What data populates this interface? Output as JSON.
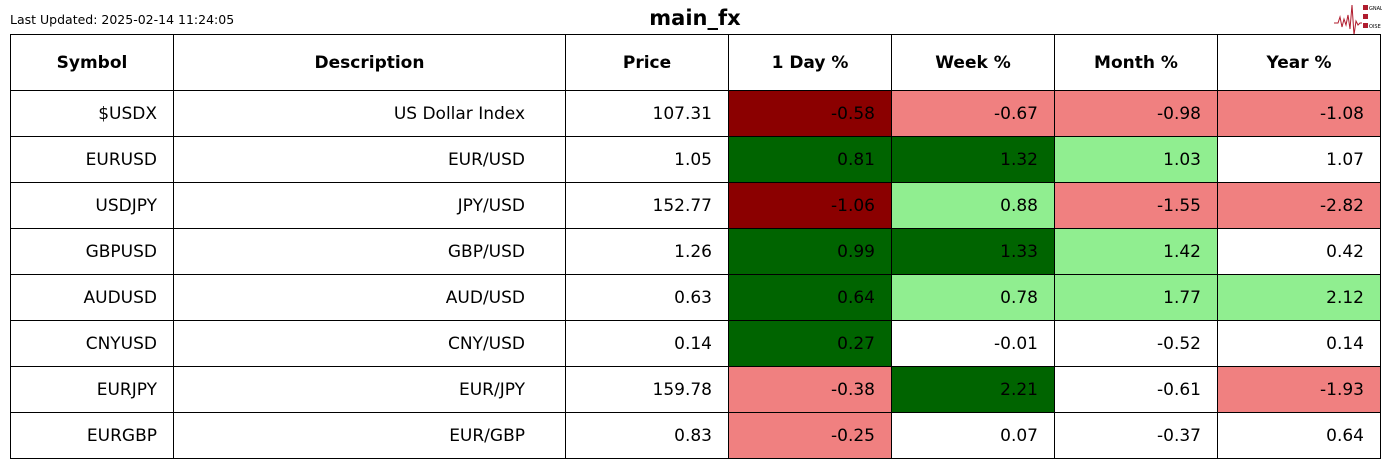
{
  "header": {
    "last_updated": "Last Updated: 2025-02-14 11:24:05",
    "title": "main_fx",
    "logo_text": "SIGNAL 2 NOISE"
  },
  "colors": {
    "strong_neg": "#8b0000",
    "neg": "#f08080",
    "strong_pos": "#006400",
    "pos": "#90ee90",
    "neutral": "#ffffff"
  },
  "table": {
    "columns": [
      "Symbol",
      "Description",
      "Price",
      "1 Day %",
      "Week %",
      "Month %",
      "Year %"
    ],
    "rows": [
      {
        "symbol": "$USDX",
        "description": "US Dollar Index",
        "price": "107.31",
        "changes": [
          "-0.58",
          "-0.67",
          "-0.98",
          "-1.08"
        ],
        "levels": [
          "strong_neg",
          "neg",
          "neg",
          "neg"
        ]
      },
      {
        "symbol": "EURUSD",
        "description": "EUR/USD",
        "price": "1.05",
        "changes": [
          "0.81",
          "1.32",
          "1.03",
          "1.07"
        ],
        "levels": [
          "strong_pos",
          "strong_pos",
          "pos",
          "neutral"
        ]
      },
      {
        "symbol": "USDJPY",
        "description": "JPY/USD",
        "price": "152.77",
        "changes": [
          "-1.06",
          "0.88",
          "-1.55",
          "-2.82"
        ],
        "levels": [
          "strong_neg",
          "pos",
          "neg",
          "neg"
        ]
      },
      {
        "symbol": "GBPUSD",
        "description": "GBP/USD",
        "price": "1.26",
        "changes": [
          "0.99",
          "1.33",
          "1.42",
          "0.42"
        ],
        "levels": [
          "strong_pos",
          "strong_pos",
          "pos",
          "neutral"
        ]
      },
      {
        "symbol": "AUDUSD",
        "description": "AUD/USD",
        "price": "0.63",
        "changes": [
          "0.64",
          "0.78",
          "1.77",
          "2.12"
        ],
        "levels": [
          "strong_pos",
          "pos",
          "pos",
          "pos"
        ]
      },
      {
        "symbol": "CNYUSD",
        "description": "CNY/USD",
        "price": "0.14",
        "changes": [
          "0.27",
          "-0.01",
          "-0.52",
          "0.14"
        ],
        "levels": [
          "strong_pos",
          "neutral",
          "neutral",
          "neutral"
        ]
      },
      {
        "symbol": "EURJPY",
        "description": "EUR/JPY",
        "price": "159.78",
        "changes": [
          "-0.38",
          "2.21",
          "-0.61",
          "-1.93"
        ],
        "levels": [
          "neg",
          "strong_pos",
          "neutral",
          "neg"
        ]
      },
      {
        "symbol": "EURGBP",
        "description": "EUR/GBP",
        "price": "0.83",
        "changes": [
          "-0.25",
          "0.07",
          "-0.37",
          "0.64"
        ],
        "levels": [
          "neg",
          "neutral",
          "neutral",
          "neutral"
        ]
      }
    ]
  }
}
